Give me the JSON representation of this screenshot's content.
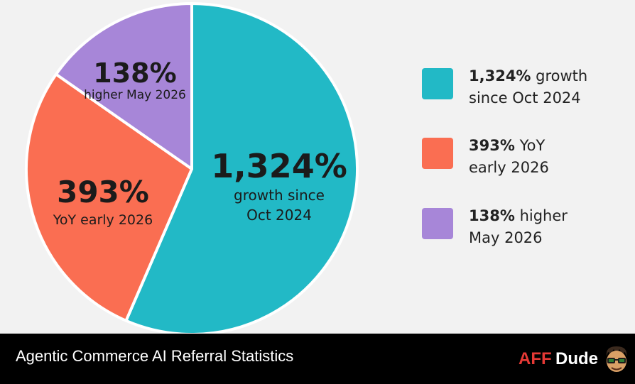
{
  "chart_data": {
    "type": "pie",
    "slices": [
      {
        "big": "1,324%",
        "label_lines": [
          "growth since",
          "Oct 2024"
        ],
        "value": 0.565,
        "color": "#22b9c6"
      },
      {
        "big": "393%",
        "label_lines": [
          "YoY early 2026"
        ],
        "value": 0.282,
        "color": "#fa6e52"
      },
      {
        "big": "138%",
        "label_lines": [
          "higher May 2026"
        ],
        "value": 0.153,
        "color": "#a786d8"
      }
    ],
    "legend": [
      {
        "strong": "1,324%",
        "rest1": " growth",
        "line2": "since Oct 2024",
        "color": "#22b9c6"
      },
      {
        "strong": "393%",
        "rest1": " YoY",
        "line2": "early 2026",
        "color": "#fa6e52"
      },
      {
        "strong": "138%",
        "rest1": " higher",
        "line2": "May 2026",
        "color": "#a786d8"
      }
    ],
    "legend_position": "right"
  },
  "footer": {
    "title": "Agentic Commerce AI Referral Statistics",
    "brand_aff": "AFF",
    "brand_dude": "Dude"
  }
}
